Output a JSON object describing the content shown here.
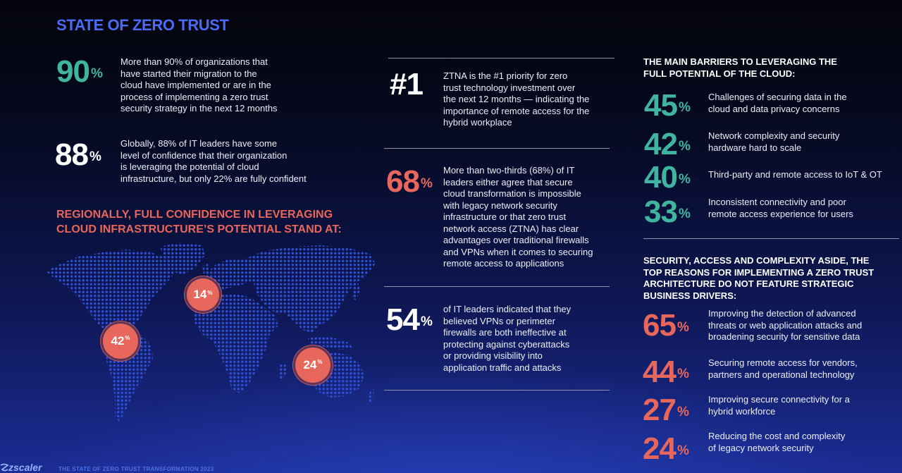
{
  "header": {
    "title": "STATE OF ZERO TRUST"
  },
  "colors": {
    "title_blue": "#4c6bf5",
    "teal": "#3fb59f",
    "coral": "#e8675c",
    "white": "#ffffff",
    "map_dots": "#2e4fd4"
  },
  "left": {
    "stats": [
      {
        "value": "90",
        "unit": "%",
        "color": "teal",
        "text": "More than 90% of organizations that\nhave started their migration to the\ncloud have implemented or are in the\nprocess of implementing a zero trust\nsecurity strategy in the next 12 months"
      },
      {
        "value": "88",
        "unit": "%",
        "color": "white",
        "text": "Globally, 88% of IT leaders have some\nlevel of confidence that their organization\nis leveraging the potential of cloud\ninfrastructure, but only 22% are fully confident"
      }
    ],
    "regional_heading": "REGIONALLY, FULL CONFIDENCE IN LEVERAGING\nCLOUD INFRASTRUCTURE’S POTENTIAL STAND AT:",
    "regions": [
      {
        "value": "42",
        "unit": "%"
      },
      {
        "value": "14",
        "unit": "%"
      },
      {
        "value": "24",
        "unit": "%"
      }
    ]
  },
  "middle": {
    "stats": [
      {
        "value": "#1",
        "color": "white",
        "text": "ZTNA is the #1 priority for zero\ntrust technology investment over\nthe next 12 months — indicating the\nimportance of remote access for the\nhybrid workplace"
      },
      {
        "value": "68",
        "unit": "%",
        "color": "coral",
        "text": "More than two-thirds (68%) of IT\nleaders either agree that secure\ncloud transformation is impossible\nwith legacy network security\ninfrastructure or that zero trust\nnetwork access (ZTNA) has clear\nadvantages over traditional firewalls\nand VPNs when it comes to securing\nremote access to applications"
      },
      {
        "value": "54",
        "unit": "%",
        "color": "white",
        "text": "of IT leaders indicated that they\nbelieved VPNs or perimeter\nfirewalls are both ineffective at\nprotecting against cyberattacks\nor providing visibility into\napplication traffic and attacks"
      }
    ]
  },
  "right": {
    "barriers": {
      "heading": "THE MAIN BARRIERS TO LEVERAGING THE\nFULL POTENTIAL OF THE CLOUD:",
      "items": [
        {
          "value": "45",
          "unit": "%",
          "color": "teal",
          "text": "Challenges of securing data in the\ncloud and data privacy concerns"
        },
        {
          "value": "42",
          "unit": "%",
          "color": "teal",
          "text": "Network complexity and security\nhardware hard to scale"
        },
        {
          "value": "40",
          "unit": "%",
          "color": "teal",
          "text": "Third-party and remote access to IoT & OT"
        },
        {
          "value": "33",
          "unit": "%",
          "color": "teal",
          "text": "Inconsistent connectivity and poor\nremote access experience for users"
        }
      ]
    },
    "reasons": {
      "heading": "SECURITY, ACCESS AND COMPLEXITY ASIDE, THE\nTOP REASONS FOR IMPLEMENTING A ZERO TRUST\nARCHITECTURE DO NOT FEATURE STRATEGIC\nBUSINESS DRIVERS:",
      "items": [
        {
          "value": "65",
          "unit": "%",
          "color": "coral",
          "text": "Improving the detection of advanced\nthreats or web application attacks and\nbroadening security for sensitive data"
        },
        {
          "value": "44",
          "unit": "%",
          "color": "coral",
          "text": "Securing remote access for vendors,\npartners and operational technology"
        },
        {
          "value": "27",
          "unit": "%",
          "color": "coral",
          "text": "Improving secure connectivity for a\nhybrid workforce"
        },
        {
          "value": "24",
          "unit": "%",
          "color": "coral",
          "text": "Reducing the cost and complexity\nof legacy network security"
        }
      ]
    }
  },
  "footer": {
    "logo": "zscaler",
    "caption": "THE STATE OF ZERO TRUST TRANSFORMATION 2023"
  }
}
